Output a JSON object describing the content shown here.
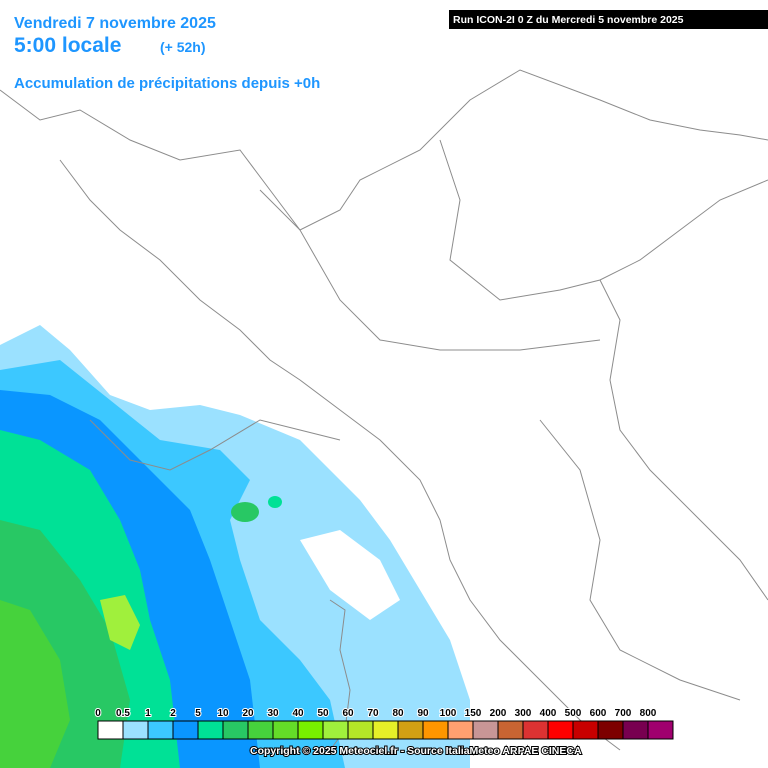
{
  "header": {
    "date": "Vendredi 7 novembre 2025",
    "time": "5:00 locale",
    "lead": "(+ 52h)",
    "product": "Accumulation de précipitations depuis +0h"
  },
  "run": "Run ICON-2I 0 Z du Mercredi 5 novembre 2025",
  "legend": {
    "items": [
      {
        "label": "0",
        "color": "#ffffff"
      },
      {
        "label": "0.5",
        "color": "#9be1ff"
      },
      {
        "label": "1",
        "color": "#3cc8ff"
      },
      {
        "label": "2",
        "color": "#0a96ff"
      },
      {
        "label": "5",
        "color": "#00e196"
      },
      {
        "label": "10",
        "color": "#28c864"
      },
      {
        "label": "20",
        "color": "#46d23c"
      },
      {
        "label": "30",
        "color": "#64dc28"
      },
      {
        "label": "40",
        "color": "#78f000"
      },
      {
        "label": "50",
        "color": "#a0f03c"
      },
      {
        "label": "60",
        "color": "#b4e628"
      },
      {
        "label": "70",
        "color": "#e6f028"
      },
      {
        "label": "80",
        "color": "#d2a014"
      },
      {
        "label": "90",
        "color": "#ff9600"
      },
      {
        "label": "100",
        "color": "#ffa070"
      },
      {
        "label": "150",
        "color": "#c89696"
      },
      {
        "label": "200",
        "color": "#c86432"
      },
      {
        "label": "300",
        "color": "#dc3232"
      },
      {
        "label": "400",
        "color": "#ff0000"
      },
      {
        "label": "500",
        "color": "#c80000"
      },
      {
        "label": "600",
        "color": "#7d0000"
      },
      {
        "label": "700",
        "color": "#780050"
      },
      {
        "label": "800",
        "color": "#a0006e"
      }
    ]
  },
  "copyright": "Copyright © 2025 Meteociel.fr - Source ItaliaMeteo ARPAE CINECA"
}
